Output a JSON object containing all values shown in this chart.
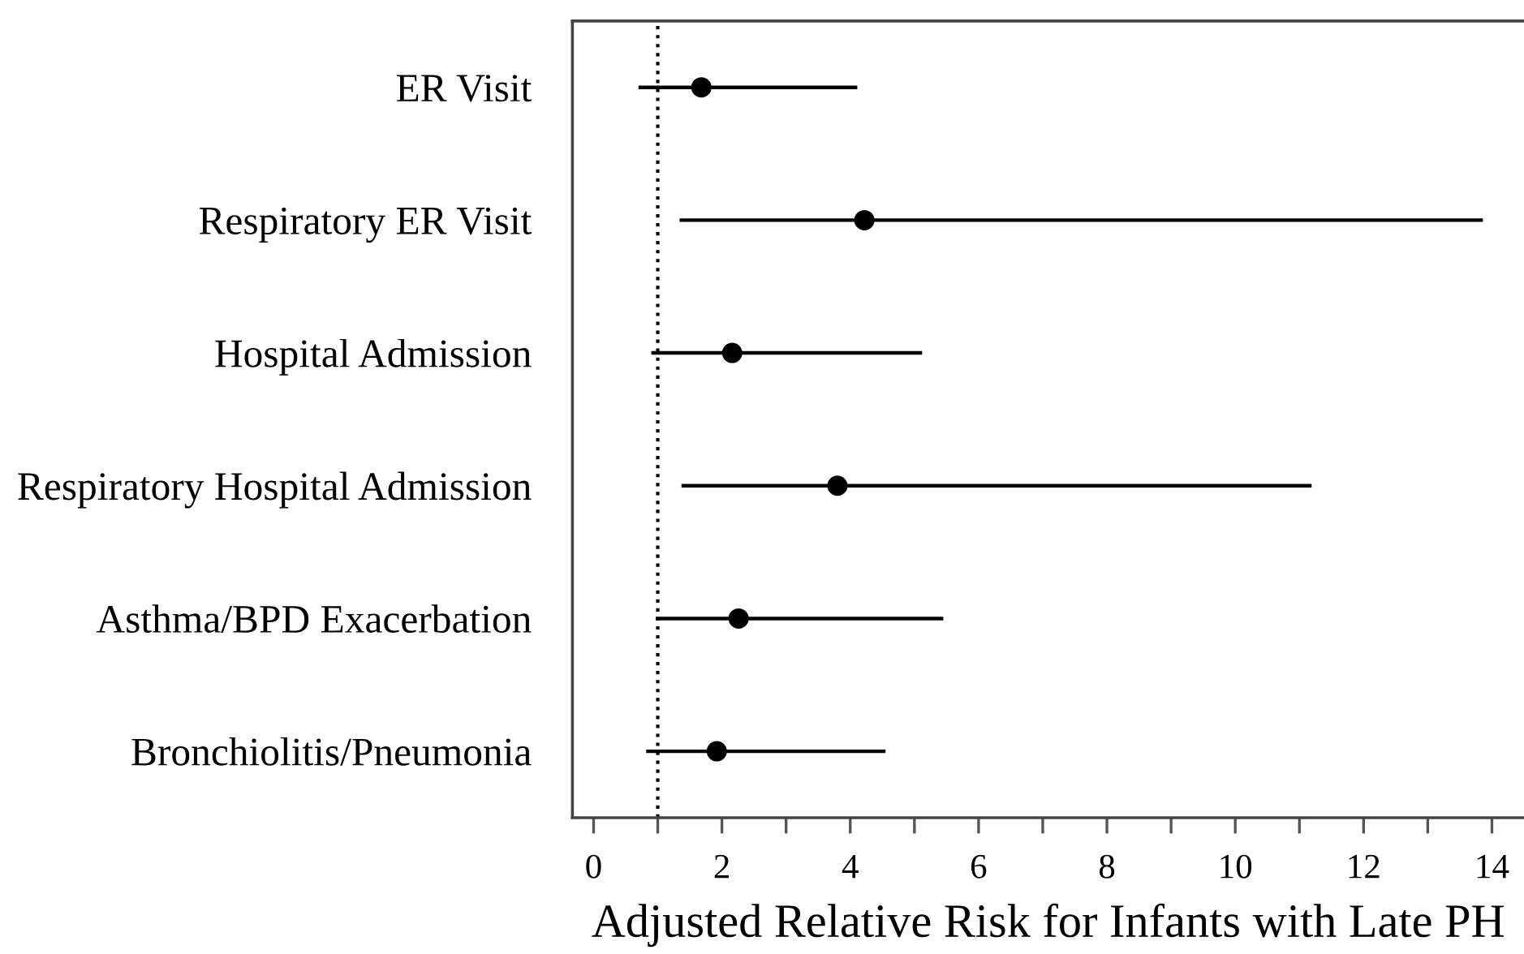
{
  "chart_data": {
    "type": "scatter",
    "orientation": "horizontal",
    "categories": [
      "ER Visit",
      "Respiratory ER Visit",
      "Hospital Admission",
      "Respiratory Hospital Admission",
      "Asthma/BPD Exacerbation",
      "Bronchiolitis/Pneumonia"
    ],
    "values": [
      1.68,
      4.22,
      2.16,
      3.8,
      2.26,
      1.92
    ],
    "errors": [
      [
        0.7,
        4.11
      ],
      [
        1.34,
        13.86
      ],
      [
        0.9,
        5.12
      ],
      [
        1.37,
        11.19
      ],
      [
        0.97,
        5.45
      ],
      [
        0.82,
        4.55
      ]
    ],
    "color": "#000000",
    "marker": "circle",
    "xlabel": "Adjusted Relative Risk for Infants with Late PH",
    "xlim": [
      -0.33,
      14.5
    ],
    "xticks": [
      0,
      {
        "value": 1,
        "label": null
      },
      2,
      {
        "value": 3,
        "label": null
      },
      4,
      {
        "value": 5,
        "label": null
      },
      6,
      {
        "value": 7,
        "label": null
      },
      8,
      {
        "value": 9,
        "label": null
      },
      10,
      {
        "value": 11,
        "label": null
      },
      12,
      {
        "value": 13,
        "label": null
      },
      14
    ],
    "ref_lines": [
      {
        "axis": "x",
        "value": 1,
        "color": "#000000",
        "line_style": "dotted"
      }
    ]
  }
}
